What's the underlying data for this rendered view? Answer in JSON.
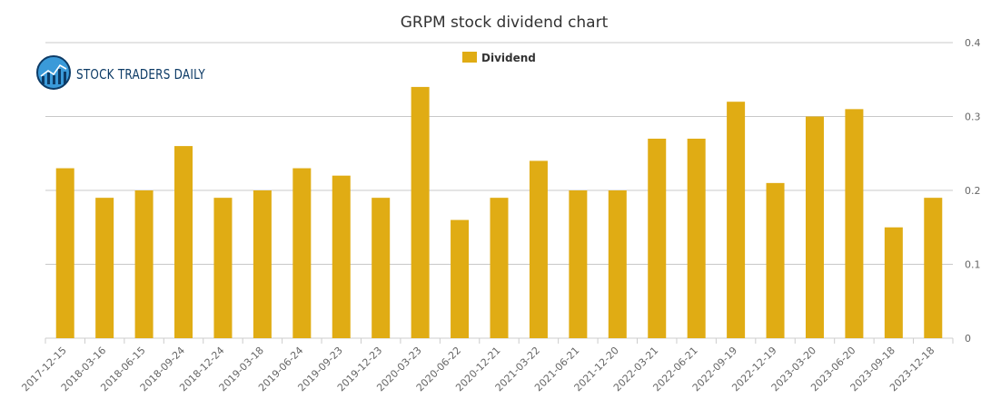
{
  "logo": {
    "text": "STOCK TRADERS DAILY",
    "icon": "bar-chart-globe-icon"
  },
  "chart_data": {
    "type": "bar",
    "title": "GRPM stock dividend chart",
    "xlabel": "",
    "ylabel": "",
    "ylim": [
      0,
      0.4
    ],
    "yticks": [
      0,
      0.1,
      0.2,
      0.3,
      0.4
    ],
    "ytick_labels": [
      "0",
      "0.1",
      "0.2",
      "0.3",
      "0.4"
    ],
    "grid": true,
    "legend_position": "top-center",
    "categories": [
      "2017-12-15",
      "2018-03-16",
      "2018-06-15",
      "2018-09-24",
      "2018-12-24",
      "2019-03-18",
      "2019-06-24",
      "2019-09-23",
      "2019-12-23",
      "2020-03-23",
      "2020-06-22",
      "2020-12-21",
      "2021-03-22",
      "2021-06-21",
      "2021-12-20",
      "2022-03-21",
      "2022-06-21",
      "2022-09-19",
      "2022-12-19",
      "2023-03-20",
      "2023-06-20",
      "2023-09-18",
      "2023-12-18"
    ],
    "series": [
      {
        "name": "Dividend",
        "color": "#e0ac14",
        "values": [
          0.23,
          0.19,
          0.2,
          0.26,
          0.19,
          0.2,
          0.23,
          0.22,
          0.19,
          0.34,
          0.16,
          0.19,
          0.24,
          0.2,
          0.2,
          0.27,
          0.27,
          0.32,
          0.21,
          0.3,
          0.31,
          0.15,
          0.19
        ]
      }
    ]
  }
}
